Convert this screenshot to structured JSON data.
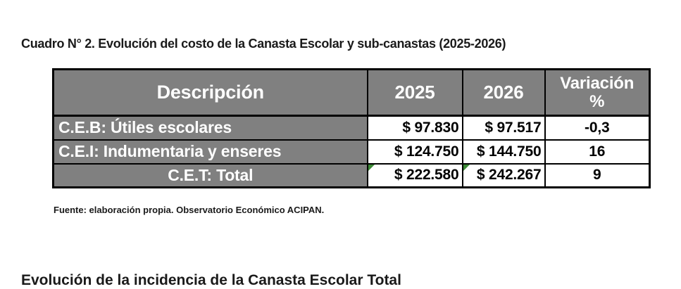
{
  "page": {
    "title": "Cuadro N° 2. Evolución del costo de la Canasta Escolar y sub-canastas (2025-2026)",
    "source_note": "Fuente: elaboración propia. Observatorio Económico ACIPAN.",
    "next_section_heading_partial": "Evolución de la incidencia de la Canasta Escolar Total"
  },
  "table": {
    "headers": {
      "descripcion": "Descripción",
      "y2025": "2025",
      "y2026": "2026",
      "variacion": "Variación %"
    },
    "rows": [
      {
        "descripcion": "C.E.B: Útiles escolares",
        "y2025": "$ 97.830",
        "y2026": "$ 97.517",
        "variacion": "-0,3"
      },
      {
        "descripcion": "C.E.I: Indumentaria y enseres",
        "y2025": "$ 124.750",
        "y2026": "$ 144.750",
        "variacion": "16"
      },
      {
        "descripcion": "C.E.T: Total",
        "y2025": "$ 222.580",
        "y2026": "$ 242.267",
        "variacion": "9"
      }
    ]
  },
  "colors": {
    "cell_fill_gray": "#808080",
    "header_descripcion_text": "#1F3864",
    "header_text": "#FFFFFF",
    "body_text": "#000000",
    "border": "#000000",
    "error_triangle_green": "#3D8B37",
    "background": "#FFFFFF"
  },
  "chart_data": {
    "type": "table",
    "title": "Cuadro N° 2. Evolución del costo de la Canasta Escolar y sub-canastas (2025-2026)",
    "columns": [
      "Descripción",
      "2025",
      "2026",
      "Variación %"
    ],
    "rows": [
      [
        "C.E.B: Útiles escolares",
        97830,
        97517,
        -0.3
      ],
      [
        "C.E.I: Indumentaria y enseres",
        124750,
        144750,
        16
      ],
      [
        "C.E.T: Total",
        222580,
        242267,
        9
      ]
    ],
    "currency": "$",
    "source": "Fuente: elaboración propia. Observatorio Económico ACIPAN."
  }
}
